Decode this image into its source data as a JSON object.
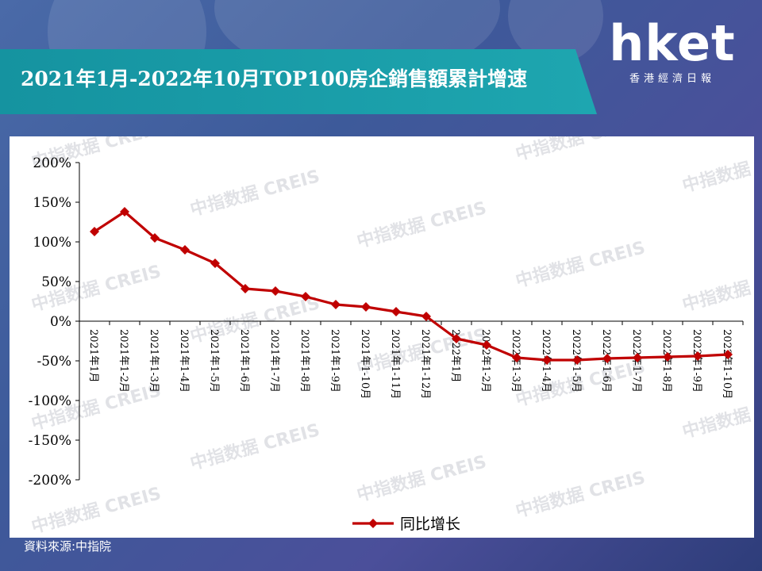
{
  "title": "2021年1月-2022年10月TOP100房企銷售額累計增速",
  "logo": {
    "main": "hket",
    "sub": "香港經濟日報"
  },
  "source": "資料來源:中指院",
  "watermark": "中指数据 CREIS",
  "colors": {
    "band": "#1a9fab",
    "line": "#c00000",
    "axis": "#000000"
  },
  "chart_data": {
    "type": "line",
    "categories": [
      "2021年1月",
      "2021年1-2月",
      "2021年1-3月",
      "2021年1-4月",
      "2021年1-5月",
      "2021年1-6月",
      "2021年1-7月",
      "2021年1-8月",
      "2021年1-9月",
      "2021年1-10月",
      "2021年1-11月",
      "2021年1-12月",
      "2022年1月",
      "2022年1-2月",
      "2022年1-3月",
      "2022年1-4月",
      "2022年1-5月",
      "2022年1-6月",
      "2022年1-7月",
      "2022年1-8月",
      "2022年1-9月",
      "2022年1-10月"
    ],
    "series": [
      {
        "name": "同比增长",
        "values": [
          113,
          138,
          105,
          90,
          73,
          41,
          38,
          31,
          21,
          18,
          12,
          6,
          -22,
          -30,
          -46,
          -49,
          -49,
          -47,
          -46,
          -45,
          -44,
          -42
        ]
      }
    ],
    "ylim": [
      -200,
      200
    ],
    "yticks": [
      200,
      150,
      100,
      50,
      0,
      -50,
      -100,
      -150,
      -200
    ],
    "ytick_labels": [
      "200%",
      "150%",
      "100%",
      "50%",
      "0%",
      "-50%",
      "-100%",
      "-150%",
      "-200%"
    ],
    "legend_position": "bottom",
    "grid": false
  }
}
